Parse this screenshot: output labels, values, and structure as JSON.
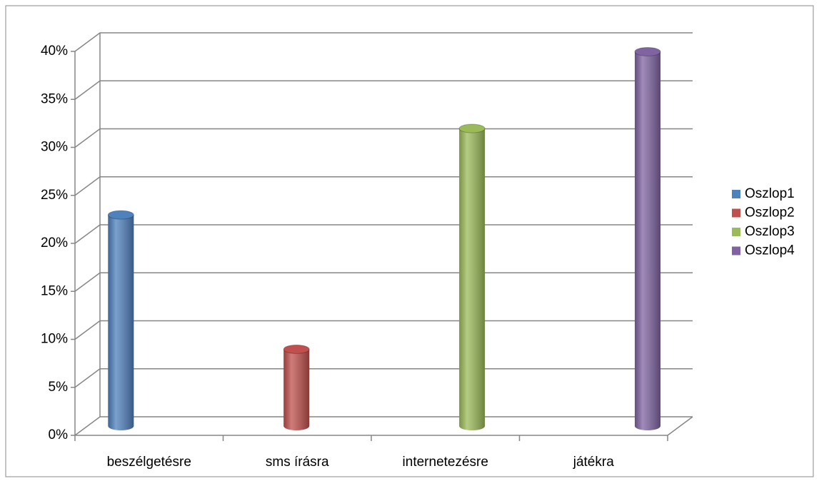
{
  "chart_data": {
    "type": "cylinder",
    "categories": [
      "beszélgetésre",
      "sms írásra",
      "internetezésre",
      "játékra"
    ],
    "series": [
      {
        "name": "Oszlop1",
        "color": "#4f81bd",
        "values": [
          22,
          null,
          null,
          null
        ]
      },
      {
        "name": "Oszlop2",
        "color": "#c0504d",
        "values": [
          null,
          8,
          null,
          null
        ]
      },
      {
        "name": "Oszlop3",
        "color": "#9bbb59",
        "values": [
          null,
          null,
          31,
          null
        ]
      },
      {
        "name": "Oszlop4",
        "color": "#8064a2",
        "values": [
          null,
          null,
          null,
          39
        ]
      }
    ],
    "ylim": [
      0,
      40
    ],
    "yticks": [
      {
        "value": 0,
        "label": "0%"
      },
      {
        "value": 5,
        "label": "5%"
      },
      {
        "value": 10,
        "label": "10%"
      },
      {
        "value": 15,
        "label": "15%"
      },
      {
        "value": 20,
        "label": "20%"
      },
      {
        "value": 25,
        "label": "25%"
      },
      {
        "value": 30,
        "label": "30%"
      },
      {
        "value": 35,
        "label": "35%"
      },
      {
        "value": 40,
        "label": "40%"
      }
    ],
    "grid": true,
    "legend": "right"
  }
}
